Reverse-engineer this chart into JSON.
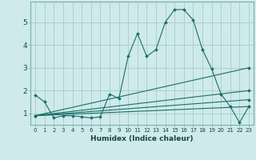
{
  "title": "",
  "xlabel": "Humidex (Indice chaleur)",
  "bg_color": "#ceeaea",
  "grid_color": "#aacccc",
  "line_color": "#1a6e6a",
  "xlim": [
    -0.5,
    23.5
  ],
  "ylim": [
    0.5,
    5.9
  ],
  "yticks": [
    1,
    2,
    3,
    4,
    5
  ],
  "xticks": [
    0,
    1,
    2,
    3,
    4,
    5,
    6,
    7,
    8,
    9,
    10,
    11,
    12,
    13,
    14,
    15,
    16,
    17,
    18,
    19,
    20,
    21,
    22,
    23
  ],
  "series": [
    {
      "x": [
        0,
        1,
        2,
        3,
        4,
        5,
        6,
        7,
        8,
        9,
        10,
        11,
        12,
        13,
        14,
        15,
        16,
        17,
        18,
        19,
        20,
        21,
        22,
        23
      ],
      "y": [
        1.8,
        1.5,
        0.8,
        0.9,
        0.9,
        0.85,
        0.8,
        0.85,
        1.85,
        1.65,
        3.5,
        4.5,
        3.5,
        3.8,
        5.0,
        5.55,
        5.55,
        5.1,
        3.8,
        2.95,
        1.85,
        1.3,
        0.6,
        1.3
      ]
    },
    {
      "x": [
        0,
        23
      ],
      "y": [
        0.9,
        3.0
      ]
    },
    {
      "x": [
        0,
        23
      ],
      "y": [
        0.9,
        2.0
      ]
    },
    {
      "x": [
        0,
        23
      ],
      "y": [
        0.9,
        1.6
      ]
    },
    {
      "x": [
        0,
        23
      ],
      "y": [
        0.9,
        1.3
      ]
    }
  ]
}
